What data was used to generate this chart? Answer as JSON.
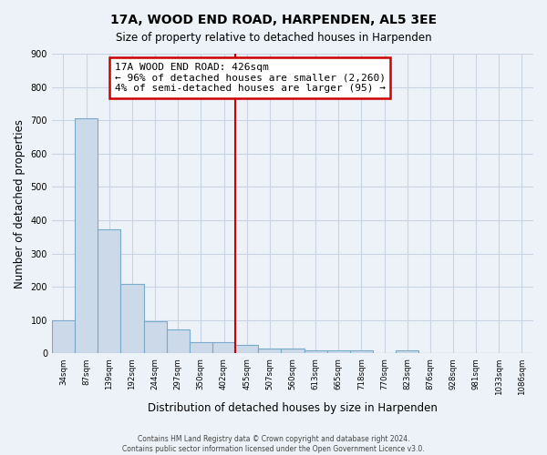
{
  "title": "17A, WOOD END ROAD, HARPENDEN, AL5 3EE",
  "subtitle": "Size of property relative to detached houses in Harpenden",
  "xlabel": "Distribution of detached houses by size in Harpenden",
  "ylabel": "Number of detached properties",
  "bin_labels": [
    "34sqm",
    "87sqm",
    "139sqm",
    "192sqm",
    "244sqm",
    "297sqm",
    "350sqm",
    "402sqm",
    "455sqm",
    "507sqm",
    "560sqm",
    "613sqm",
    "665sqm",
    "718sqm",
    "770sqm",
    "823sqm",
    "876sqm",
    "928sqm",
    "981sqm",
    "1033sqm",
    "1086sqm"
  ],
  "bar_heights": [
    100,
    707,
    372,
    209,
    96,
    72,
    35,
    35,
    25,
    15,
    15,
    10,
    10,
    10,
    0,
    10,
    0,
    0,
    0,
    0,
    0
  ],
  "bar_color": "#ccd9e8",
  "bar_edge_color": "#7aaaca",
  "vline_x": 8.0,
  "vline_color": "#cc0000",
  "annotation_title": "17A WOOD END ROAD: 426sqm",
  "annotation_line1": "← 96% of detached houses are smaller (2,260)",
  "annotation_line2": "4% of semi-detached houses are larger (95) →",
  "annotation_box_color": "#ffffff",
  "annotation_box_edge": "#cc0000",
  "ylim": [
    0,
    900
  ],
  "yticks": [
    0,
    100,
    200,
    300,
    400,
    500,
    600,
    700,
    800,
    900
  ],
  "footnote1": "Contains HM Land Registry data © Crown copyright and database right 2024.",
  "footnote2": "Contains public sector information licensed under the Open Government Licence v3.0.",
  "background_color": "#edf2f8",
  "grid_color": "#c8d4e4"
}
